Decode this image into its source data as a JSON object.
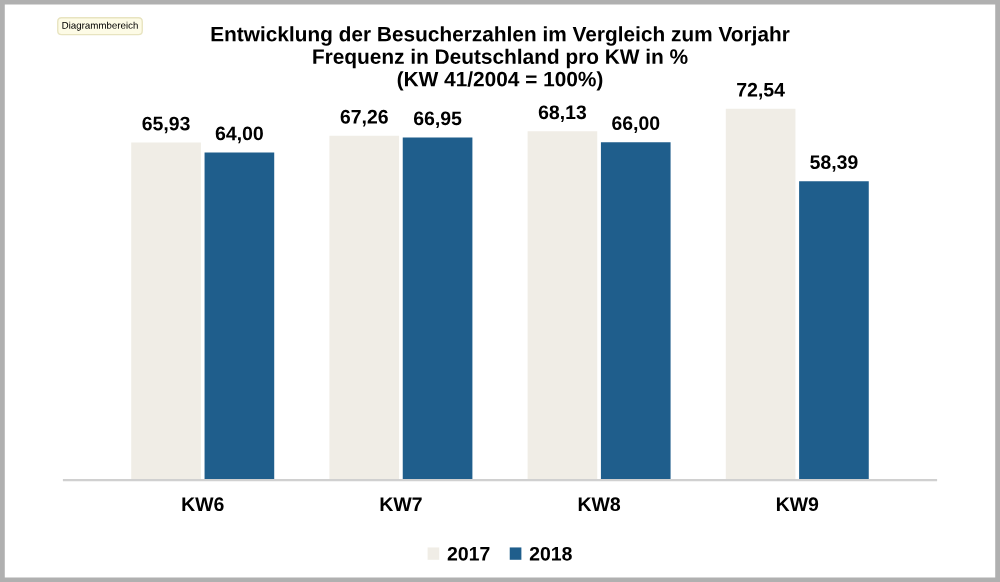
{
  "chart_data": {
    "type": "bar",
    "title": "Entwicklung der Besucherzahlen im Vergleich zum Vorjahr\nFrequenz in Deutschland pro KW in %\n(KW 41/2004 = 100%)",
    "annotations": [
      "Diagrammbereich"
    ],
    "categories": [
      "KW6",
      "KW7",
      "KW8",
      "KW9"
    ],
    "series": [
      {
        "name": "2017",
        "color": "#f0ede6",
        "values": [
          65.93,
          67.26,
          68.13,
          72.54
        ],
        "value_labels": [
          "65,93",
          "67,26",
          "68,13",
          "72,54"
        ]
      },
      {
        "name": "2018",
        "color": "#1f5e8c",
        "values": [
          64.0,
          66.95,
          66.0,
          58.39
        ],
        "value_labels": [
          "64,00",
          "66,95",
          "66,00",
          "58,39"
        ]
      }
    ],
    "tick_labels": "x",
    "grid": false,
    "legend": "bottom"
  }
}
